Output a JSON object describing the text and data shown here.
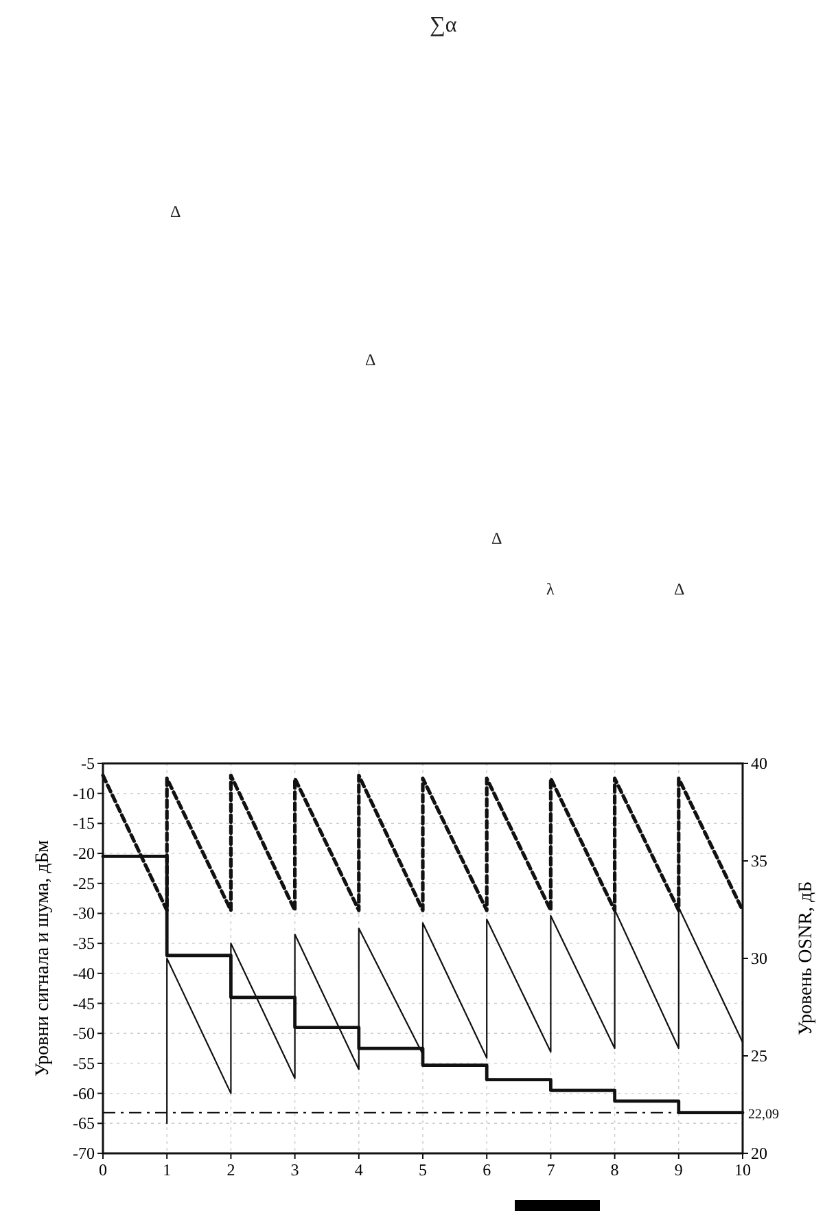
{
  "chart_data": {
    "type": "line",
    "annotations": [
      "∑α",
      "Δ",
      "Δ",
      "Δ",
      "λ",
      "Δ"
    ],
    "ylabel": "Уровни сигнала и шума, дБм",
    "y2label": "Уровень OSNR, дБ",
    "xlim": [
      0,
      10
    ],
    "xticks": [
      0,
      1,
      2,
      3,
      4,
      5,
      6,
      7,
      8,
      9,
      10
    ],
    "ylim": [
      -70,
      -5
    ],
    "yticks": [
      -70,
      -65,
      -60,
      -55,
      -50,
      -45,
      -40,
      -35,
      -30,
      -25,
      -20,
      -15,
      -10,
      -5
    ],
    "y2lim": [
      20,
      40
    ],
    "y2ticks": [
      20,
      25,
      30,
      35,
      40
    ],
    "grid": true,
    "series": [
      {
        "type": "line",
        "color": "#111111",
        "line_style": "dashed",
        "x": [
          0,
          1,
          1,
          2,
          2,
          3,
          3,
          4,
          4,
          5,
          5,
          6,
          6,
          7,
          7,
          8,
          8,
          9,
          9,
          10
        ],
        "values": [
          -7,
          -29.5,
          -7.5,
          -29.5,
          -7,
          -29.5,
          -7.5,
          -29.5,
          -7,
          -29.5,
          -7.5,
          -29.5,
          -7.5,
          -29.5,
          -7.5,
          -29.5,
          -7.5,
          -29.5,
          -7.5,
          -29.5
        ]
      },
      {
        "type": "line",
        "color": "#111111",
        "line_style": "solid",
        "x": [
          1,
          1,
          2,
          2,
          3,
          3,
          4,
          4,
          5,
          5,
          6,
          6,
          7,
          7,
          8,
          8,
          9,
          9,
          10
        ],
        "values": [
          -65,
          -37.5,
          -60,
          -35,
          -57.5,
          -33.5,
          -56,
          -32.5,
          -53.5,
          -31.6,
          -54.1,
          -31,
          -53.1,
          -30.4,
          -52.5,
          -29.4,
          -52.5,
          -29,
          -51.5
        ]
      },
      {
        "type": "step",
        "color": "#111111",
        "line_style": "solid",
        "axis": "y2",
        "x": [
          0,
          1,
          2,
          3,
          4,
          5,
          6,
          7,
          8,
          9,
          10
        ],
        "values": [
          35.23,
          30.15,
          28.0,
          26.46,
          25.38,
          24.52,
          23.78,
          23.23,
          22.68,
          22.09,
          22.09
        ]
      }
    ],
    "ref_lines": [
      {
        "axis": "y2",
        "value": 22.09,
        "label": "22,09",
        "color": "#111111",
        "line_style": "dashdot"
      }
    ]
  }
}
